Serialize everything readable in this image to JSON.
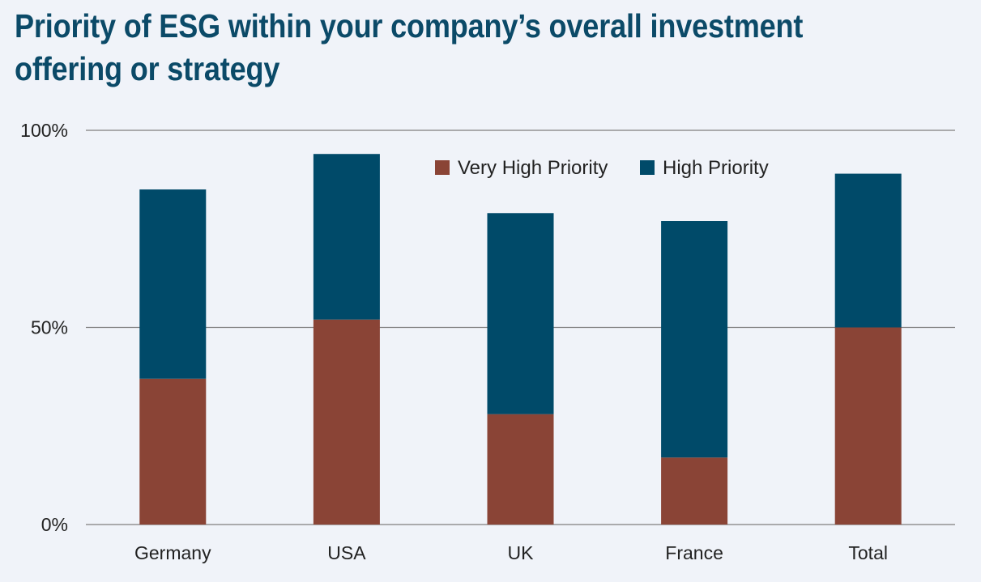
{
  "title": "Priority of ESG within your company’s overall investment offering or strategy",
  "colors": {
    "background": "#f0f3f9",
    "very_high": "#8a4436",
    "high": "#004a69",
    "grid": "#7f7f7f"
  },
  "chart_data": {
    "type": "bar",
    "stacked": true,
    "title": "Priority of ESG within your company’s overall investment offering or strategy",
    "categories": [
      "Germany",
      "USA",
      "UK",
      "France",
      "Total"
    ],
    "series": [
      {
        "name": "Very High Priority",
        "color": "#8a4436",
        "values": [
          37,
          52,
          28,
          17,
          50
        ]
      },
      {
        "name": "High Priority",
        "color": "#004a69",
        "values": [
          48,
          42,
          51,
          60,
          39
        ]
      }
    ],
    "ylim": [
      0,
      100
    ],
    "yticks": [
      0,
      50,
      100
    ],
    "ytick_labels": [
      "0%",
      "50%",
      "100%"
    ],
    "grid": true,
    "legend_position": "top-right"
  }
}
